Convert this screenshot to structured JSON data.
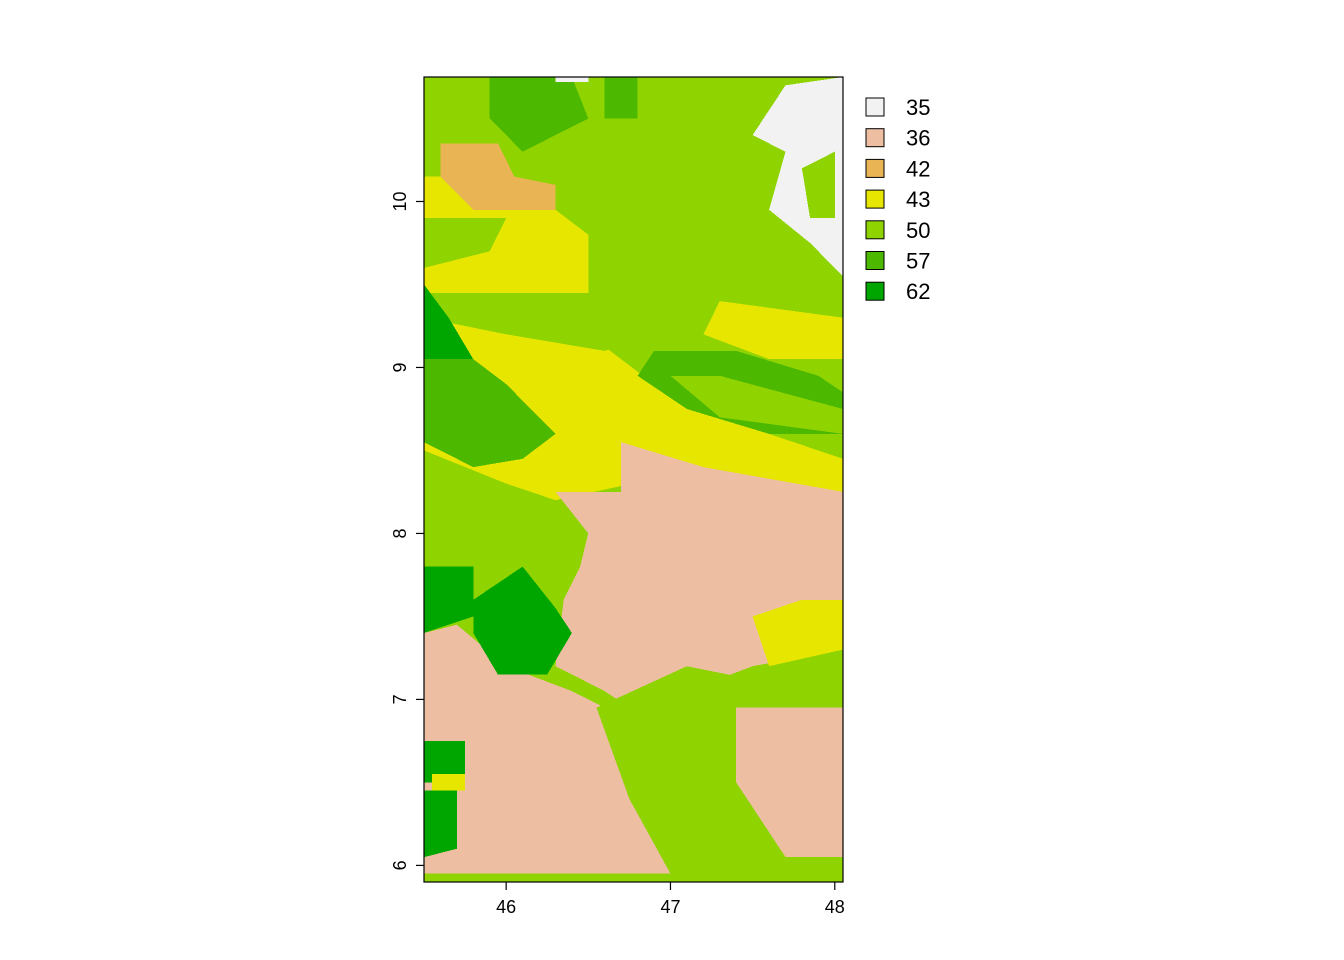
{
  "chart_data": {
    "type": "heatmap",
    "title": "",
    "xlabel": "",
    "ylabel": "",
    "xlim": [
      45.5,
      48.05
    ],
    "ylim": [
      5.9,
      10.75
    ],
    "x_ticks": [
      {
        "value": 46,
        "label": "46"
      },
      {
        "value": 47,
        "label": "47"
      },
      {
        "value": 48,
        "label": "48"
      }
    ],
    "y_ticks": [
      {
        "value": 6,
        "label": "6"
      },
      {
        "value": 7,
        "label": "7"
      },
      {
        "value": 8,
        "label": "8"
      },
      {
        "value": 9,
        "label": "9"
      },
      {
        "value": 10,
        "label": "10"
      }
    ],
    "legend_position": "top-right",
    "legend": [
      {
        "value": 35,
        "label": "35",
        "color": "#f2f2f2"
      },
      {
        "value": 36,
        "label": "36",
        "color": "#eebea2"
      },
      {
        "value": 42,
        "label": "42",
        "color": "#e8b454"
      },
      {
        "value": 43,
        "label": "43",
        "color": "#e6e600"
      },
      {
        "value": 50,
        "label": "50",
        "color": "#8fd400"
      },
      {
        "value": 57,
        "label": "57",
        "color": "#4cb800"
      },
      {
        "value": 62,
        "label": "62",
        "color": "#00a600"
      }
    ],
    "regions": [
      {
        "class": 50,
        "points": [
          [
            45.5,
            10.75
          ],
          [
            48.05,
            10.75
          ],
          [
            48.05,
            9.05
          ],
          [
            47.2,
            9.4
          ],
          [
            46.6,
            9.9
          ],
          [
            45.5,
            10.0
          ]
        ]
      },
      {
        "class": 57,
        "points": [
          [
            45.9,
            10.75
          ],
          [
            46.4,
            10.75
          ],
          [
            46.5,
            10.5
          ],
          [
            46.1,
            10.3
          ],
          [
            45.9,
            10.5
          ]
        ]
      },
      {
        "class": 57,
        "points": [
          [
            46.6,
            10.75
          ],
          [
            46.8,
            10.75
          ],
          [
            46.8,
            10.5
          ],
          [
            46.6,
            10.5
          ]
        ]
      },
      {
        "class": 35,
        "points": [
          [
            46.3,
            10.75
          ],
          [
            46.5,
            10.75
          ],
          [
            46.5,
            10.72
          ],
          [
            46.3,
            10.72
          ]
        ]
      },
      {
        "class": 35,
        "points": [
          [
            47.7,
            10.7
          ],
          [
            48.05,
            10.75
          ],
          [
            48.05,
            9.55
          ],
          [
            47.85,
            9.75
          ],
          [
            47.6,
            9.95
          ],
          [
            47.7,
            10.3
          ],
          [
            47.5,
            10.4
          ]
        ]
      },
      {
        "class": 50,
        "points": [
          [
            47.8,
            10.2
          ],
          [
            48.0,
            10.3
          ],
          [
            48.0,
            9.9
          ],
          [
            47.85,
            9.9
          ]
        ]
      },
      {
        "class": 42,
        "points": [
          [
            45.6,
            10.35
          ],
          [
            45.95,
            10.35
          ],
          [
            46.05,
            10.15
          ],
          [
            46.3,
            10.1
          ],
          [
            46.3,
            9.95
          ],
          [
            45.8,
            9.95
          ],
          [
            45.6,
            10.1
          ]
        ]
      },
      {
        "class": 43,
        "points": [
          [
            45.5,
            10.15
          ],
          [
            45.6,
            10.15
          ],
          [
            45.8,
            9.95
          ],
          [
            46.3,
            9.95
          ],
          [
            46.5,
            9.8
          ],
          [
            46.5,
            9.2
          ],
          [
            46.9,
            8.9
          ],
          [
            47.3,
            8.7
          ],
          [
            48.05,
            8.45
          ],
          [
            48.05,
            8.25
          ],
          [
            47.0,
            8.35
          ],
          [
            46.3,
            8.2
          ],
          [
            46.0,
            8.3
          ],
          [
            45.5,
            8.5
          ]
        ]
      },
      {
        "class": 50,
        "points": [
          [
            45.5,
            9.9
          ],
          [
            46.0,
            9.9
          ],
          [
            45.9,
            9.7
          ],
          [
            45.5,
            9.6
          ]
        ]
      },
      {
        "class": 50,
        "points": [
          [
            45.5,
            9.45
          ],
          [
            46.5,
            9.45
          ],
          [
            46.9,
            9.2
          ],
          [
            46.6,
            9.1
          ],
          [
            46.0,
            9.2
          ],
          [
            45.5,
            9.3
          ]
        ]
      },
      {
        "class": 57,
        "points": [
          [
            46.9,
            9.1
          ],
          [
            47.4,
            9.1
          ],
          [
            47.9,
            8.95
          ],
          [
            48.05,
            8.85
          ],
          [
            48.05,
            8.6
          ],
          [
            47.6,
            8.6
          ],
          [
            47.1,
            8.75
          ],
          [
            46.8,
            8.95
          ]
        ]
      },
      {
        "class": 50,
        "points": [
          [
            47.0,
            8.95
          ],
          [
            47.3,
            8.95
          ],
          [
            48.05,
            8.75
          ],
          [
            48.05,
            8.6
          ],
          [
            47.3,
            8.7
          ]
        ]
      },
      {
        "class": 43,
        "points": [
          [
            47.3,
            9.4
          ],
          [
            48.05,
            9.3
          ],
          [
            48.05,
            9.05
          ],
          [
            47.6,
            9.05
          ],
          [
            47.2,
            9.2
          ]
        ]
      },
      {
        "class": 62,
        "points": [
          [
            45.5,
            9.5
          ],
          [
            45.65,
            9.3
          ],
          [
            45.8,
            9.05
          ],
          [
            45.5,
            9.0
          ]
        ]
      },
      {
        "class": 57,
        "points": [
          [
            45.5,
            9.05
          ],
          [
            45.8,
            9.05
          ],
          [
            46.0,
            8.9
          ],
          [
            46.3,
            8.6
          ],
          [
            46.1,
            8.45
          ],
          [
            45.8,
            8.4
          ],
          [
            45.5,
            8.55
          ]
        ]
      },
      {
        "class": 36,
        "points": [
          [
            46.3,
            8.25
          ],
          [
            46.7,
            8.25
          ],
          [
            46.7,
            8.55
          ],
          [
            47.2,
            8.4
          ],
          [
            48.05,
            8.25
          ],
          [
            48.05,
            7.3
          ],
          [
            47.5,
            7.2
          ],
          [
            47.1,
            7.05
          ],
          [
            46.9,
            6.85
          ],
          [
            46.6,
            7.05
          ],
          [
            46.3,
            7.2
          ],
          [
            46.35,
            7.6
          ],
          [
            46.45,
            7.8
          ],
          [
            46.5,
            8.0
          ]
        ]
      },
      {
        "class": 43,
        "points": [
          [
            47.5,
            7.5
          ],
          [
            47.8,
            7.6
          ],
          [
            48.05,
            7.6
          ],
          [
            48.05,
            7.3
          ],
          [
            47.6,
            7.2
          ]
        ]
      },
      {
        "class": 36,
        "points": [
          [
            45.5,
            7.4
          ],
          [
            45.7,
            7.45
          ],
          [
            46.0,
            7.2
          ],
          [
            46.4,
            7.05
          ],
          [
            46.6,
            6.95
          ],
          [
            46.75,
            6.55
          ],
          [
            47.0,
            5.95
          ],
          [
            45.5,
            5.95
          ]
        ]
      },
      {
        "class": 50,
        "points": [
          [
            46.55,
            6.95
          ],
          [
            47.1,
            7.2
          ],
          [
            47.6,
            7.1
          ],
          [
            48.05,
            6.95
          ],
          [
            48.05,
            6.05
          ],
          [
            47.6,
            6.05
          ],
          [
            47.4,
            6.55
          ],
          [
            47.2,
            6.25
          ],
          [
            47.0,
            5.95
          ],
          [
            46.75,
            6.4
          ]
        ]
      },
      {
        "class": 36,
        "points": [
          [
            47.4,
            6.95
          ],
          [
            47.8,
            6.95
          ],
          [
            48.05,
            6.95
          ],
          [
            48.05,
            6.05
          ],
          [
            47.7,
            6.05
          ],
          [
            47.4,
            6.5
          ]
        ]
      },
      {
        "class": 62,
        "points": [
          [
            45.5,
            7.8
          ],
          [
            45.8,
            7.8
          ],
          [
            45.8,
            7.5
          ],
          [
            45.5,
            7.4
          ]
        ]
      },
      {
        "class": 62,
        "points": [
          [
            45.8,
            7.6
          ],
          [
            46.1,
            7.8
          ],
          [
            46.3,
            7.55
          ],
          [
            46.4,
            7.4
          ],
          [
            46.25,
            7.15
          ],
          [
            45.95,
            7.15
          ],
          [
            45.8,
            7.4
          ]
        ]
      },
      {
        "class": 62,
        "points": [
          [
            45.5,
            6.75
          ],
          [
            45.75,
            6.75
          ],
          [
            45.75,
            6.5
          ],
          [
            45.5,
            6.5
          ]
        ]
      },
      {
        "class": 62,
        "points": [
          [
            45.5,
            6.45
          ],
          [
            45.7,
            6.45
          ],
          [
            45.7,
            6.1
          ],
          [
            45.5,
            6.05
          ]
        ]
      },
      {
        "class": 43,
        "points": [
          [
            45.55,
            6.55
          ],
          [
            45.75,
            6.55
          ],
          [
            45.75,
            6.45
          ],
          [
            45.55,
            6.45
          ]
        ]
      }
    ]
  }
}
